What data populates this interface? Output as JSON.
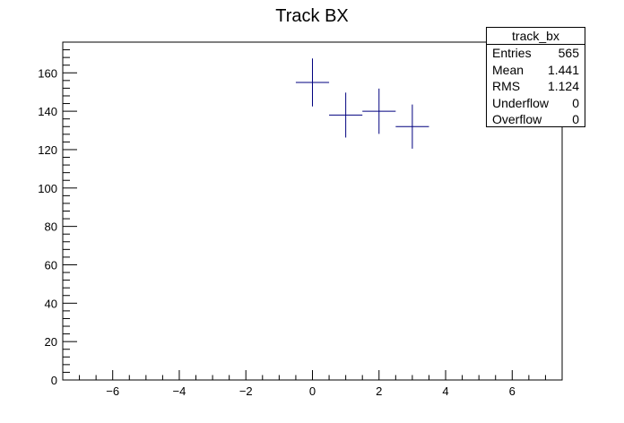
{
  "chart_data": {
    "type": "scatter",
    "title": "Track BX",
    "xlabel": "",
    "ylabel": "",
    "xlim": [
      -7.5,
      7.5
    ],
    "ylim": [
      0,
      176
    ],
    "x_ticks": [
      -6,
      -4,
      -2,
      0,
      2,
      4,
      6
    ],
    "y_ticks": [
      0,
      20,
      40,
      60,
      80,
      100,
      120,
      140,
      160
    ],
    "grid": false,
    "series": [
      {
        "color": "#00007f",
        "points": [
          {
            "x": 0,
            "y": 155,
            "x_err": 0.5,
            "y_err": 12.5
          },
          {
            "x": 1,
            "y": 138,
            "x_err": 0.5,
            "y_err": 11.7
          },
          {
            "x": 2,
            "y": 140,
            "x_err": 0.5,
            "y_err": 11.8
          },
          {
            "x": 3,
            "y": 132,
            "x_err": 0.5,
            "y_err": 11.5
          }
        ]
      }
    ],
    "stats": {
      "name": "track_bx",
      "rows": [
        {
          "label": "Entries",
          "value": "565"
        },
        {
          "label": "Mean",
          "value": "1.441"
        },
        {
          "label": "RMS",
          "value": "1.124"
        },
        {
          "label": "Underflow",
          "value": "0"
        },
        {
          "label": "Overflow",
          "value": "0"
        }
      ]
    }
  }
}
